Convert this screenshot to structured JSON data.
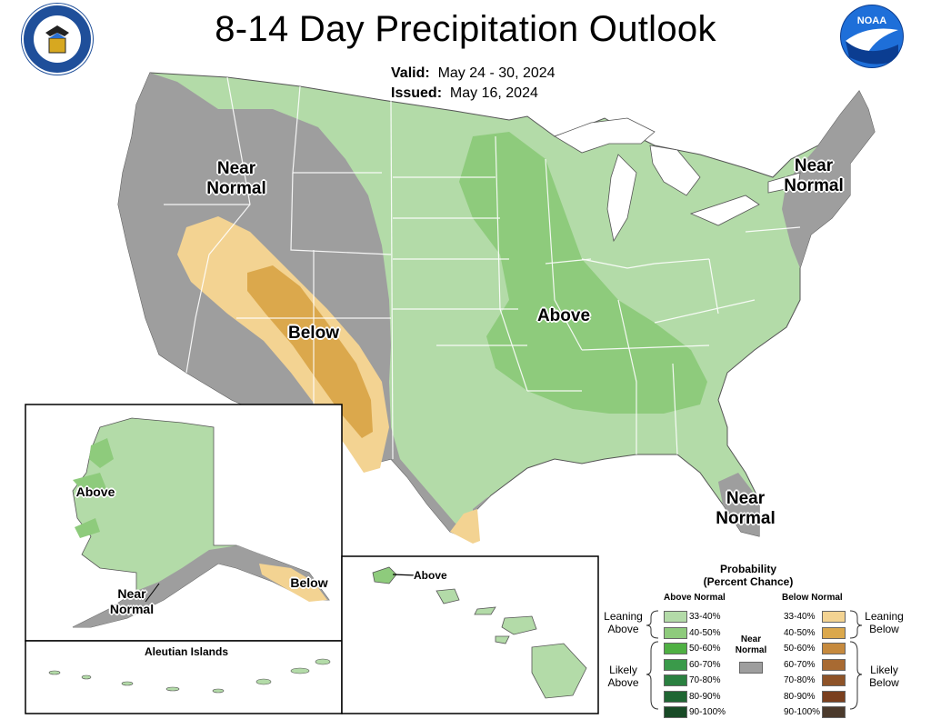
{
  "header": {
    "title": "8-14 Day Precipitation Outlook",
    "valid_label": "Valid:",
    "valid_value": "May 24 - 30, 2024",
    "issued_label": "Issued:",
    "issued_value": "May 16, 2024"
  },
  "logos": {
    "left": "department-of-commerce-seal",
    "right": "noaa-logo",
    "right_text": "NOAA"
  },
  "regions": {
    "near_normal_west": "Near\nNormal",
    "near_normal_northeast": "Near\nNormal",
    "near_normal_florida": "Near\nNormal",
    "below_southwest": "Below",
    "above_central": "Above",
    "alaska_above": "Above",
    "alaska_near_normal": "Near\nNormal",
    "alaska_below": "Below",
    "aleutian_title": "Aleutian Islands",
    "hawaii_above": "Above"
  },
  "colors": {
    "near_normal": "#9e9e9e",
    "above_33_40": "#b3dba8",
    "above_40_50": "#8ecb7c",
    "below_33_40": "#f3d392",
    "below_40_50": "#dba84c",
    "state_lines": "#ffffff",
    "outline": "#000000"
  },
  "legend": {
    "title": "Probability\n(Percent Chance)",
    "above_header": "Above Normal",
    "below_header": "Below Normal",
    "near_normal_label": "Near\nNormal",
    "leaning_above": "Leaning\nAbove",
    "likely_above": "Likely\nAbove",
    "leaning_below": "Leaning\nBelow",
    "likely_below": "Likely\nBelow",
    "above_items": [
      {
        "label": "33-40%",
        "color": "#b3dba8"
      },
      {
        "label": "40-50%",
        "color": "#8ecb7c"
      },
      {
        "label": "50-60%",
        "color": "#4fb043"
      },
      {
        "label": "60-70%",
        "color": "#3a9a4a"
      },
      {
        "label": "70-80%",
        "color": "#2a8040"
      },
      {
        "label": "80-90%",
        "color": "#1f6633"
      },
      {
        "label": "90-100%",
        "color": "#184a26"
      }
    ],
    "below_items": [
      {
        "label": "33-40%",
        "color": "#f3d392"
      },
      {
        "label": "40-50%",
        "color": "#dba84c"
      },
      {
        "label": "50-60%",
        "color": "#c68a3e"
      },
      {
        "label": "60-70%",
        "color": "#a86a32"
      },
      {
        "label": "70-80%",
        "color": "#8e5328"
      },
      {
        "label": "80-90%",
        "color": "#7a3f1e"
      },
      {
        "label": "90-100%",
        "color": "#4b3a2c"
      }
    ]
  }
}
